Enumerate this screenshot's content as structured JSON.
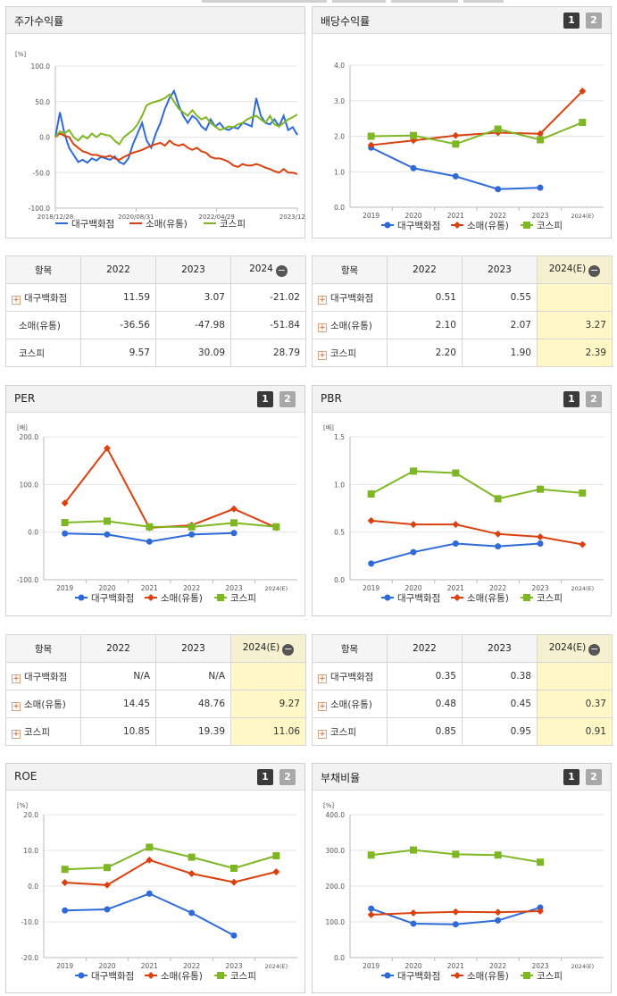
{
  "colors": {
    "dept": "#2f6bd8",
    "retail": "#d9410f",
    "kospi": "#7fb724"
  },
  "btn1": "1",
  "btn2": "2",
  "panels": {
    "return": {
      "title": "주가수익률",
      "legend": [
        "대구백화점",
        "소매(유통)",
        "코스피"
      ],
      "table": {
        "header": [
          "항목",
          "2022",
          "2023",
          "2024"
        ],
        "rows": [
          {
            "name": "대구백화점",
            "plus": true,
            "v": [
              "11.59",
              "3.07",
              "-21.02"
            ]
          },
          {
            "name": "소매(유통)",
            "plus": false,
            "v": [
              "-36.56",
              "-47.98",
              "-51.84"
            ]
          },
          {
            "name": "코스피",
            "plus": false,
            "v": [
              "9.57",
              "30.09",
              "28.79"
            ]
          }
        ]
      }
    },
    "dividend": {
      "title": "배당수익률",
      "legend": [
        "대구백화점",
        "소매(유통)",
        "코스피"
      ],
      "table": {
        "header": [
          "항목",
          "2022",
          "2023",
          "2024(E)"
        ],
        "rows": [
          {
            "name": "대구백화점",
            "plus": true,
            "v": [
              "0.51",
              "0.55",
              ""
            ]
          },
          {
            "name": "소매(유통)",
            "plus": true,
            "v": [
              "2.10",
              "2.07",
              "3.27"
            ]
          },
          {
            "name": "코스피",
            "plus": true,
            "v": [
              "2.20",
              "1.90",
              "2.39"
            ]
          }
        ]
      }
    },
    "per": {
      "title": "PER",
      "legend": [
        "대구백화점",
        "소매(유통)",
        "코스피"
      ],
      "table": {
        "header": [
          "항목",
          "2022",
          "2023",
          "2024(E)"
        ],
        "rows": [
          {
            "name": "대구백화점",
            "plus": true,
            "v": [
              "N/A",
              "N/A",
              ""
            ]
          },
          {
            "name": "소매(유통)",
            "plus": true,
            "v": [
              "14.45",
              "48.76",
              "9.27"
            ]
          },
          {
            "name": "코스피",
            "plus": true,
            "v": [
              "10.85",
              "19.39",
              "11.06"
            ]
          }
        ]
      }
    },
    "pbr": {
      "title": "PBR",
      "legend": [
        "대구백화점",
        "소매(유통)",
        "코스피"
      ],
      "table": {
        "header": [
          "항목",
          "2022",
          "2023",
          "2024(E)"
        ],
        "rows": [
          {
            "name": "대구백화점",
            "plus": true,
            "v": [
              "0.35",
              "0.38",
              ""
            ]
          },
          {
            "name": "소매(유통)",
            "plus": true,
            "v": [
              "0.48",
              "0.45",
              "0.37"
            ]
          },
          {
            "name": "코스피",
            "plus": true,
            "v": [
              "0.85",
              "0.95",
              "0.91"
            ]
          }
        ]
      }
    },
    "roe": {
      "title": "ROE",
      "legend": [
        "대구백화점",
        "소매(유통)",
        "코스피"
      ]
    },
    "debt": {
      "title": "부채비율",
      "legend": [
        "대구백화점",
        "소매(유통)",
        "코스피"
      ]
    }
  },
  "chart_data": [
    {
      "id": "return",
      "type": "line",
      "title": "주가수익률",
      "ylabel": "[%]",
      "ylim": [
        -100,
        100
      ],
      "yticks": [
        "100.0",
        "50.0",
        "0.0",
        "-50.0",
        "-100.0"
      ],
      "xticks": [
        "2018/12/28",
        "2020/08/31",
        "2022/04/29",
        "2023/12/28"
      ],
      "series": [
        {
          "name": "대구백화점",
          "values": [
            0,
            35,
            5,
            -15,
            -25,
            -35,
            -32,
            -36,
            -30,
            -33,
            -28,
            -30,
            -32,
            -27,
            -35,
            -38,
            -30,
            -10,
            5,
            20,
            -5,
            -15,
            5,
            20,
            40,
            55,
            65,
            45,
            30,
            20,
            30,
            25,
            15,
            10,
            25,
            15,
            20,
            12,
            10,
            14,
            12,
            20,
            18,
            15,
            55,
            30,
            20,
            18,
            25,
            15,
            30,
            10,
            14,
            3
          ]
        },
        {
          "name": "소매(유통)",
          "values": [
            0,
            5,
            2,
            0,
            -10,
            -15,
            -20,
            -22,
            -25,
            -25,
            -27,
            -28,
            -26,
            -30,
            -32,
            -28,
            -25,
            -22,
            -20,
            -18,
            -15,
            -12,
            -10,
            -8,
            -12,
            -5,
            -10,
            -12,
            -10,
            -15,
            -18,
            -15,
            -20,
            -22,
            -28,
            -30,
            -30,
            -32,
            -35,
            -40,
            -42,
            -38,
            -40,
            -40,
            -38,
            -40,
            -43,
            -45,
            -48,
            -50,
            -45,
            -50,
            -50,
            -52
          ]
        },
        {
          "name": "코스피",
          "values": [
            0,
            8,
            5,
            10,
            0,
            -5,
            2,
            -2,
            5,
            0,
            5,
            3,
            2,
            -5,
            -10,
            0,
            5,
            10,
            18,
            30,
            45,
            48,
            50,
            52,
            55,
            60,
            50,
            40,
            35,
            30,
            38,
            30,
            25,
            28,
            20,
            15,
            10,
            12,
            15,
            14,
            18,
            20,
            25,
            28,
            30,
            25,
            20,
            30,
            18,
            15,
            20,
            25,
            28,
            32
          ]
        }
      ]
    },
    {
      "id": "dividend",
      "type": "line",
      "title": "배당수익률",
      "ylim": [
        0,
        4
      ],
      "yticks": [
        "4.0",
        "3.0",
        "2.0",
        "1.0",
        "0.0"
      ],
      "categories": [
        "2019",
        "2020",
        "2021",
        "2022",
        "2023",
        "2024(E)"
      ],
      "series": [
        {
          "name": "대구백화점",
          "values": [
            1.68,
            1.1,
            0.87,
            0.51,
            0.55,
            null
          ]
        },
        {
          "name": "소매(유통)",
          "values": [
            1.75,
            1.88,
            2.02,
            2.1,
            2.07,
            3.27
          ]
        },
        {
          "name": "코스피",
          "values": [
            2.0,
            2.02,
            1.78,
            2.2,
            1.9,
            2.39
          ]
        }
      ]
    },
    {
      "id": "per",
      "type": "line",
      "title": "PER",
      "ylabel": "[배]",
      "ylim": [
        -100,
        200
      ],
      "yticks": [
        "200.0",
        "100.0",
        "0.0",
        "-100.0"
      ],
      "categories": [
        "2019",
        "2020",
        "2021",
        "2022",
        "2023",
        "2024(E)"
      ],
      "series": [
        {
          "name": "대구백화점",
          "values": [
            -3,
            -5,
            -20,
            -5,
            -2,
            null
          ]
        },
        {
          "name": "소매(유통)",
          "values": [
            61,
            176,
            9,
            14.45,
            48.76,
            9.27
          ]
        },
        {
          "name": "코스피",
          "values": [
            20,
            23,
            11,
            10.85,
            19.39,
            11.06
          ]
        }
      ]
    },
    {
      "id": "pbr",
      "type": "line",
      "title": "PBR",
      "ylabel": "[배]",
      "ylim": [
        0,
        1.5
      ],
      "yticks": [
        "1.5",
        "1.0",
        "0.5",
        "0.0"
      ],
      "categories": [
        "2019",
        "2020",
        "2021",
        "2022",
        "2023",
        "2024(E)"
      ],
      "series": [
        {
          "name": "대구백화점",
          "values": [
            0.17,
            0.29,
            0.38,
            0.35,
            0.38,
            null
          ]
        },
        {
          "name": "소매(유통)",
          "values": [
            0.62,
            0.58,
            0.58,
            0.48,
            0.45,
            0.37
          ]
        },
        {
          "name": "코스피",
          "values": [
            0.9,
            1.14,
            1.12,
            0.85,
            0.95,
            0.91
          ]
        }
      ]
    },
    {
      "id": "roe",
      "type": "line",
      "title": "ROE",
      "ylabel": "[%]",
      "ylim": [
        -20,
        20
      ],
      "yticks": [
        "20.0",
        "10.0",
        "0.0",
        "-10.0",
        "-20.0"
      ],
      "categories": [
        "2019",
        "2020",
        "2021",
        "2022",
        "2023",
        "2024(E)"
      ],
      "series": [
        {
          "name": "대구백화점",
          "values": [
            -6.8,
            -6.5,
            -2.1,
            -7.5,
            -13.8,
            null
          ]
        },
        {
          "name": "소매(유통)",
          "values": [
            1.0,
            0.3,
            7.3,
            3.5,
            1.1,
            4.0
          ]
        },
        {
          "name": "코스피",
          "values": [
            4.7,
            5.2,
            10.9,
            8.1,
            5.0,
            8.5
          ]
        }
      ]
    },
    {
      "id": "debt",
      "type": "line",
      "title": "부채비율",
      "ylabel": "[%]",
      "ylim": [
        0,
        400
      ],
      "yticks": [
        "400.0",
        "300.0",
        "200.0",
        "100.0",
        "0.0"
      ],
      "categories": [
        "2019",
        "2020",
        "2021",
        "2022",
        "2023",
        "2024(E)"
      ],
      "series": [
        {
          "name": "대구백화점",
          "values": [
            137,
            95,
            93,
            104,
            140,
            null
          ]
        },
        {
          "name": "소매(유통)",
          "values": [
            120,
            125,
            128,
            127,
            130,
            null
          ]
        },
        {
          "name": "코스피",
          "values": [
            287,
            301,
            289,
            287,
            267,
            null
          ]
        }
      ]
    }
  ]
}
